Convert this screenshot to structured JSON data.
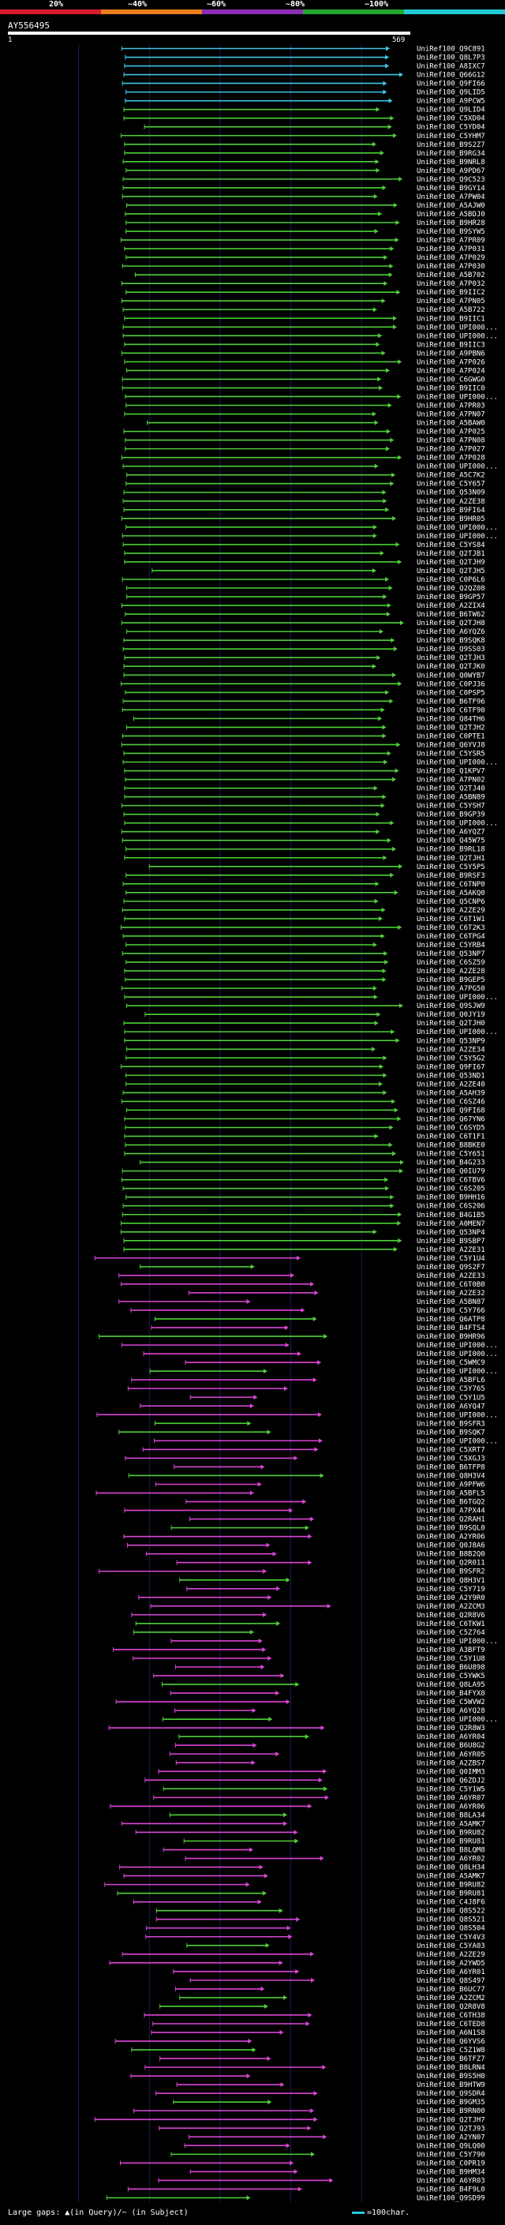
{
  "colors": {
    "background": "#000000",
    "scale_segments": [
      "#d81d2e",
      "#ea7d1a",
      "#8d2fb4",
      "#26a630",
      "#22cbd6"
    ],
    "identity": {
      "40": "#d81d2e",
      "60": "#ea7d1a",
      "80": "#d946d6",
      "95": "#4fcf3a",
      "100": "#3ec7e8"
    },
    "grid": "#1c1c55"
  },
  "scale": {
    "ticks": [
      "20%",
      "~40%",
      "~60%",
      "~80%",
      "~100%"
    ]
  },
  "query": {
    "id": "AY556495",
    "length": 569,
    "start_label": "1",
    "end_label": "569"
  },
  "legend": {
    "gaps_text": "Large gaps: ▲(in Query)/~ (in Subject)",
    "scale_text": "=100char."
  },
  "hits": [
    "UniRef100_Q9C891",
    "UniRef100_Q8L7P3",
    "UniRef100_A8IXC7",
    "UniRef100_Q66G12",
    "UniRef100_Q9FI66",
    "UniRef100_Q9LID5",
    "UniRef100_A9PCW5",
    "UniRef100_Q9LID4",
    "UniRef100_C5XD04",
    "UniRef100_C5YD04",
    "UniRef100_C5YHM7",
    "UniRef100_B9S2Z7",
    "UniRef100_B9RG34",
    "UniRef100_B9NRL8",
    "UniRef100_A9PD67",
    "UniRef100_Q9C523",
    "UniRef100_B9GY14",
    "UniRef100_A7PW04",
    "UniRef100_A5AJW0",
    "UniRef100_A5BDJ0",
    "UniRef100_B9HR28",
    "UniRef100_B9SYW5",
    "UniRef100_A7PR09",
    "UniRef100_A7P031",
    "UniRef100_A7P029",
    "UniRef100_A7P030",
    "UniRef100_A5B702",
    "UniRef100_A7P032",
    "UniRef100_B9IIC2",
    "UniRef100_A7PN05",
    "UniRef100_A5B722",
    "UniRef100_B9IIC1",
    "UniRef100_UPI000...",
    "UniRef100_UPI000...",
    "UniRef100_B9IIC3",
    "UniRef100_A9PBN6",
    "UniRef100_A7P026",
    "UniRef100_A7P024",
    "UniRef100_C6GWG0",
    "UniRef100_B9IIC0",
    "UniRef100_UPI000...",
    "UniRef100_A7PR03",
    "UniRef100_A7PN07",
    "UniRef100_A5BAW0",
    "UniRef100_A7P025",
    "UniRef100_A7PN08",
    "UniRef100_A7P027",
    "UniRef100_A7P028",
    "UniRef100_UPI000...",
    "UniRef100_A5C7K2",
    "UniRef100_C5Y657",
    "UniRef100_Q53N09",
    "UniRef100_A2ZE38",
    "UniRef100_B9FI64",
    "UniRef100_B9HR05",
    "UniRef100_UPI000...",
    "UniRef100_UPI000...",
    "UniRef100_C5YS84",
    "UniRef100_Q2TJB1",
    "UniRef100_Q2TJH9",
    "UniRef100_Q2TJH5",
    "UniRef100_C0P6L6",
    "UniRef100_Q2QZ08",
    "UniRef100_B9GP57",
    "UniRef100_A2ZIX4",
    "UniRef100_B6TW62",
    "UniRef100_Q2TJH8",
    "UniRef100_A6YQZ6",
    "UniRef100_B9SQK8",
    "UniRef100_Q9SS03",
    "UniRef100_Q2TJH3",
    "UniRef100_Q2TJK0",
    "UniRef100_Q0WYB7",
    "UniRef100_C0PJ36",
    "UniRef100_C0PSP5",
    "UniRef100_B6TF96",
    "UniRef100_C6TF90",
    "UniRef100_Q84TH6",
    "UniRef100_Q2TJH2",
    "UniRef100_C0PTE1",
    "UniRef100_Q6YVJ8",
    "UniRef100_C5YSR5",
    "UniRef100_UPI000...",
    "UniRef100_Q1KPV7",
    "UniRef100_A7PN02",
    "UniRef100_Q2TJ40",
    "UniRef100_A5BN89",
    "UniRef100_C5YSH7",
    "UniRef100_B9GP39",
    "UniRef100_UPI000...",
    "UniRef100_A6YQZ7",
    "UniRef100_Q45W75",
    "UniRef100_B9RL18",
    "UniRef100_Q2TJH1",
    "UniRef100_C5Y5P5",
    "UniRef100_B9RSF3",
    "UniRef100_C6TNP0",
    "UniRef100_A5AKQ0",
    "UniRef100_Q5CNP6",
    "UniRef100_A2ZE29",
    "UniRef100_C6T1W1",
    "UniRef100_C6T2K3",
    "UniRef100_C6TPG4",
    "UniRef100_C5YRB4",
    "UniRef100_Q53NP7",
    "UniRef100_C6SZ59",
    "UniRef100_A2ZE28",
    "UniRef100_B9GEP5",
    "UniRef100_A7PG50",
    "UniRef100_UPI000...",
    "UniRef100_Q9SJW9",
    "UniRef100_Q0JY19",
    "UniRef100_Q2TJH0",
    "UniRef100_UPI000...",
    "UniRef100_Q53NP9",
    "UniRef100_A2ZE34",
    "UniRef100_C5Y5G2",
    "UniRef100_Q9FI67",
    "UniRef100_Q53ND1",
    "UniRef100_A2ZE40",
    "UniRef100_A5AH39",
    "UniRef100_C6SZ46",
    "UniRef100_Q9FI68",
    "UniRef100_Q67YN6",
    "UniRef100_C6SYD5",
    "UniRef100_C6T1F1",
    "UniRef100_B8BKE0",
    "UniRef100_C5Y651",
    "UniRef100_B4G233",
    "UniRef100_Q0IU79",
    "UniRef100_C6TBV6",
    "UniRef100_C6S205",
    "UniRef100_B9HH16",
    "UniRef100_C6S206",
    "UniRef100_B4G1B5",
    "UniRef100_A0MEN7",
    "UniRef100_Q53NP4",
    "UniRef100_B9SBP7",
    "UniRef100_A2ZE31",
    "UniRef100_C5Y1U4",
    "UniRef100_Q9S2F7",
    "UniRef100_A2ZE33",
    "UniRef100_C6T0B0",
    "UniRef100_A2ZE32",
    "UniRef100_A5BN87",
    "UniRef100_C5Y766",
    "UniRef100_Q6ATP8",
    "UniRef100_B4FTS4",
    "UniRef100_B9HR96",
    "UniRef100_UPI000...",
    "UniRef100_UPI000...",
    "UniRef100_C5WMC9",
    "UniRef100_UPI000...",
    "UniRef100_A5BFL6",
    "UniRef100_C5Y765",
    "UniRef100_C5Y1U5",
    "UniRef100_A6YQ47",
    "UniRef100_UPI000...",
    "UniRef100_B9SFR3",
    "UniRef100_B9SQK7",
    "UniRef100_UPI000...",
    "UniRef100_C5XRT7",
    "UniRef100_C5XGJ3",
    "UniRef100_B6TFP8",
    "UniRef100_Q8H3V4",
    "UniRef100_A9PFW6",
    "UniRef100_A5BFL5",
    "UniRef100_B6TGQ2",
    "UniRef100_A7PX44",
    "UniRef100_Q2RAH1",
    "UniRef100_B9SQL0",
    "UniRef100_A2YR06",
    "UniRef100_Q0J8A6",
    "UniRef100_B8B2Q0",
    "UniRef100_Q2R011",
    "UniRef100_B9SFR2",
    "UniRef100_Q8H3V1",
    "UniRef100_C5Y719",
    "UniRef100_A2Y9R0",
    "UniRef100_A2ZCM3",
    "UniRef100_Q2R8V6",
    "UniRef100_C6TKW1",
    "UniRef100_C5Z764",
    "UniRef100_UPI000...",
    "UniRef100_A3BFT9",
    "UniRef100_C5Y1U8",
    "UniRef100_B6U898",
    "UniRef100_C5YWK5",
    "UniRef100_Q8LA95",
    "UniRef100_B4FYX8",
    "UniRef100_C5WVW2",
    "UniRef100_A6YQ28",
    "UniRef100_UPI000...",
    "UniRef100_Q2R8W3",
    "UniRef100_A6YR04",
    "UniRef100_B6U8G2",
    "UniRef100_A6YR05",
    "UniRef100_A2ZBS7",
    "UniRef100_Q0IMM3",
    "UniRef100_Q6ZDJ2",
    "UniRef100_C5Y1W5",
    "UniRef100_A6YR07",
    "UniRef100_A6YR06",
    "UniRef100_B8LA34",
    "UniRef100_A5AMK7",
    "UniRef100_B9RU82",
    "UniRef100_B9RU81",
    "UniRef100_B8LQM8",
    "UniRef100_A6YR02",
    "UniRef100_Q8LH34",
    "UniRef100_A5AMK7",
    "UniRef100_B9RU82",
    "UniRef100_B9RU81",
    "UniRef100_C4J8F6",
    "UniRef100_Q8S522",
    "UniRef100_Q8S521",
    "UniRef100_Q8S504",
    "UniRef100_C5Y4V3",
    "UniRef100_C5YA03",
    "UniRef100_A2ZE29",
    "UniRef100_A2YWD5",
    "UniRef100_A6YR01",
    "UniRef100_Q8S497",
    "UniRef100_B6UC77",
    "UniRef100_A2ZCM2",
    "UniRef100_Q2R8V8",
    "UniRef100_C6TH38",
    "UniRef100_C6TED8",
    "UniRef100_A6N1S8",
    "UniRef100_Q6YVS6",
    "UniRef100_C5Z1W8",
    "UniRef100_B6TFZ7",
    "UniRef100_B8LRN4",
    "UniRef100_B9S5H0",
    "UniRef100_B9HTW9",
    "UniRef100_Q9SDR4",
    "UniRef100_B9GM35",
    "UniRef100_B9RN00",
    "UniRef100_Q2TJH7",
    "UniRef100_Q2TJ93",
    "UniRef100_A2YN07",
    "UniRef100_Q9LQ00",
    "UniRef100_C5Y790",
    "UniRef100_C0PR19",
    "UniRef100_B9HM34",
    "UniRef100_A6YR03",
    "UniRef100_B4F9L0",
    "UniRef100_Q9SD99"
  ]
}
